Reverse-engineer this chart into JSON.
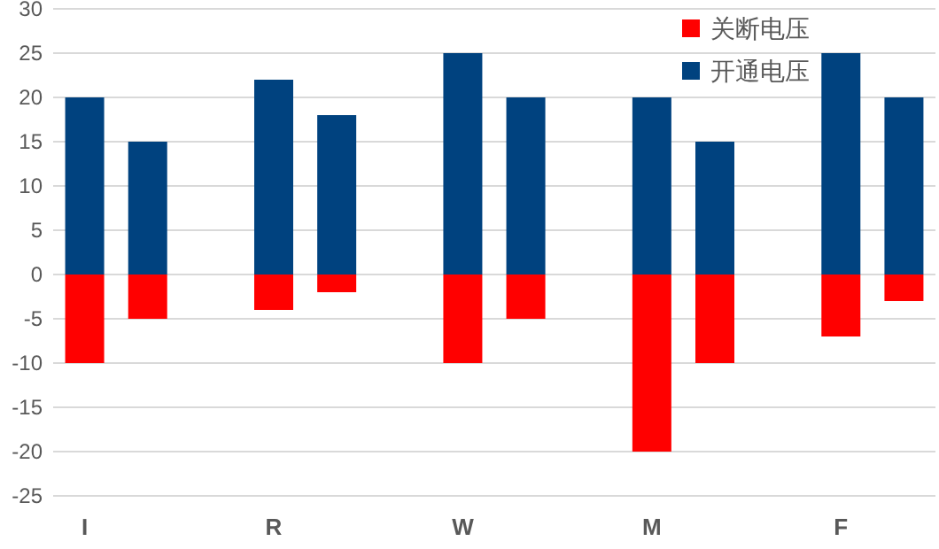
{
  "chart_data": {
    "type": "bar",
    "stacked": true,
    "categories": [
      "I",
      null,
      null,
      "R",
      null,
      null,
      "W",
      null,
      null,
      "M",
      null,
      null,
      "F",
      null
    ],
    "series": [
      {
        "name": "关断电压",
        "color": "#ff0000",
        "values": [
          -10,
          -5,
          null,
          -4,
          -2,
          null,
          -10,
          -5,
          null,
          -20,
          -10,
          null,
          -7,
          -3
        ]
      },
      {
        "name": "开通电压",
        "color": "#00427f",
        "values": [
          20,
          15,
          null,
          22,
          18,
          null,
          25,
          20,
          null,
          20,
          15,
          null,
          25,
          20
        ]
      }
    ],
    "ylim": [
      -25,
      30
    ],
    "yticks": [
      -25,
      -20,
      -15,
      -10,
      -5,
      0,
      5,
      10,
      15,
      20,
      25,
      30
    ],
    "grid": "y",
    "legend": "top right"
  }
}
